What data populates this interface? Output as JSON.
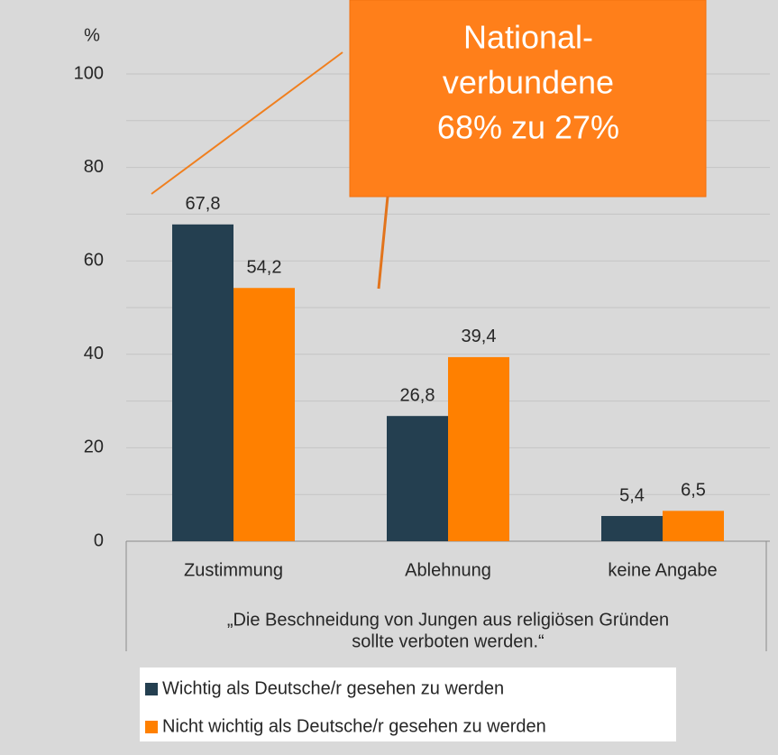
{
  "chart_data": {
    "type": "bar",
    "y_axis_label": "%",
    "categories": [
      "Zustimmung",
      "Ablehnung",
      "keine Angabe"
    ],
    "series": [
      {
        "name": "Wichtig als Deutsche/r gesehen zu werden",
        "color": "#243f50",
        "values": [
          67.8,
          26.8,
          5.4
        ],
        "value_labels": [
          "67,8",
          "26,8",
          "5,4"
        ]
      },
      {
        "name": "Nicht wichtig als Deutsche/r gesehen zu werden",
        "color": "#ff8000",
        "values": [
          54.2,
          39.4,
          6.5
        ],
        "value_labels": [
          "54,2",
          "39,4",
          "6,5"
        ]
      }
    ],
    "x_axis_label": [
      "„Die Beschneidung von Jungen aus religiösen Gründen",
      "sollte verboten werden.“"
    ],
    "ylim": [
      0,
      100
    ],
    "yticks": [
      0,
      20,
      40,
      60,
      80,
      100
    ],
    "grid": true,
    "annotation": [
      "National-",
      "verbundene",
      "68% zu 27%"
    ]
  }
}
